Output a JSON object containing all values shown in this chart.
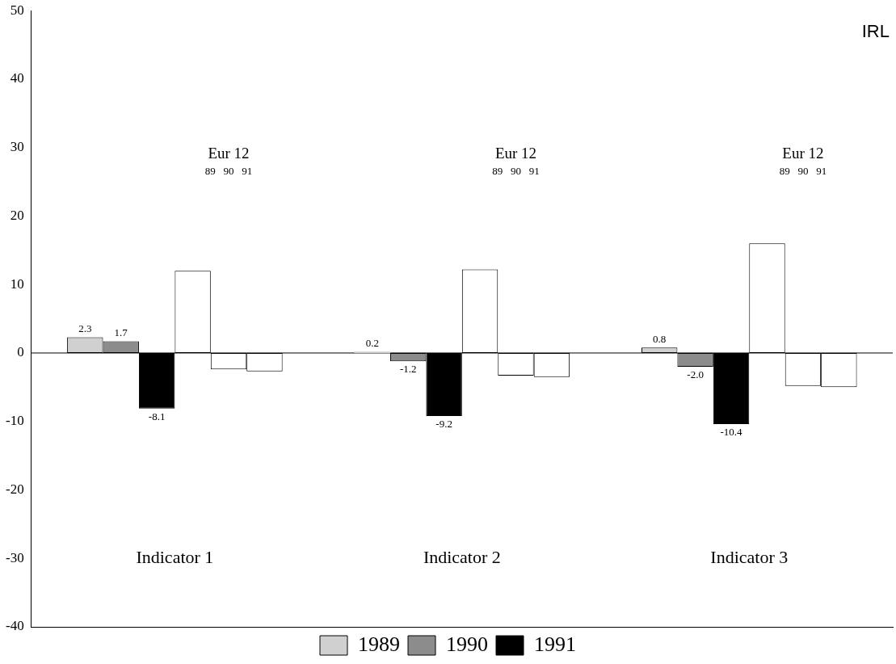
{
  "chart_data": {
    "type": "bar",
    "categories": [
      "Indicator 1",
      "Indicator 2",
      "Indicator 3"
    ],
    "series": [
      {
        "name": "1989",
        "color": "#d0d0d0",
        "values": [
          2.3,
          0.2,
          0.8
        ],
        "value_labels": [
          "2.3",
          "0.2",
          "0.8"
        ]
      },
      {
        "name": "1990",
        "color": "#8c8c8c",
        "values": [
          1.7,
          -1.2,
          -2.0
        ],
        "value_labels": [
          "1.7",
          "-1.2",
          "-2.0"
        ]
      },
      {
        "name": "1991",
        "color": "#000000",
        "values": [
          -8.1,
          -9.2,
          -10.4
        ],
        "value_labels": [
          "-8.1",
          "-9.2",
          "-10.4"
        ]
      },
      {
        "color": "#ffffff",
        "values": [
          12,
          12.2,
          16
        ]
      },
      {
        "color": "#ffffff",
        "values": [
          -2.4,
          -3.3,
          -4.8
        ]
      },
      {
        "color": "#ffffff",
        "values": [
          -2.7,
          -3.5,
          -5.0
        ]
      }
    ],
    "ylim": [
      -40,
      50
    ],
    "yticks": [
      -40,
      -30,
      -20,
      -10,
      0,
      10,
      20,
      30,
      40,
      50
    ],
    "grid": false,
    "legend": "bottom",
    "ref_lines": [
      {
        "axis": "y",
        "value": 0,
        "color": "#000000"
      }
    ],
    "annotations": [
      "IRL",
      "Eur 12",
      "89   90   91",
      "Eur 12",
      "89   90   91",
      "Eur 12",
      "89   90   91"
    ]
  }
}
